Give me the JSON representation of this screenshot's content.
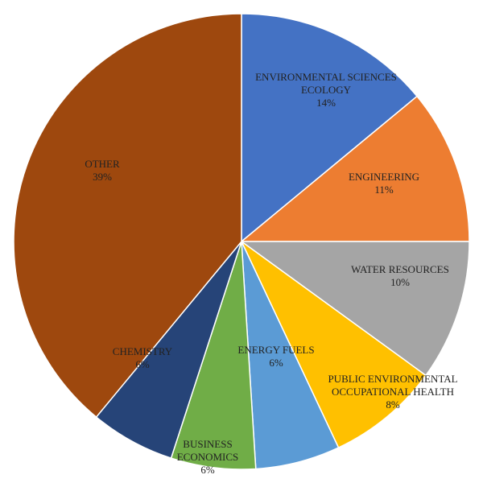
{
  "chart_data": {
    "type": "pie",
    "categories": [
      "ENVIRONMENTAL SCIENCES ECOLOGY",
      "ENGINEERING",
      "WATER RESOURCES",
      "PUBLIC ENVIRONMENTAL OCCUPATIONAL HEALTH",
      "ENERGY FUELS",
      "BUSINESS ECONOMICS",
      "CHEMISTRY",
      "OTHER"
    ],
    "values": [
      14,
      11,
      10,
      8,
      6,
      6,
      6,
      39
    ],
    "value_labels": [
      "14%",
      "11%",
      "10%",
      "8%",
      "6%",
      "6%",
      "6%",
      "39%"
    ],
    "colors": [
      "#4472c4",
      "#ed7d31",
      "#a5a5a5",
      "#ffc000",
      "#5b9bd5",
      "#70ad47",
      "#264478",
      "#9e480e"
    ]
  }
}
